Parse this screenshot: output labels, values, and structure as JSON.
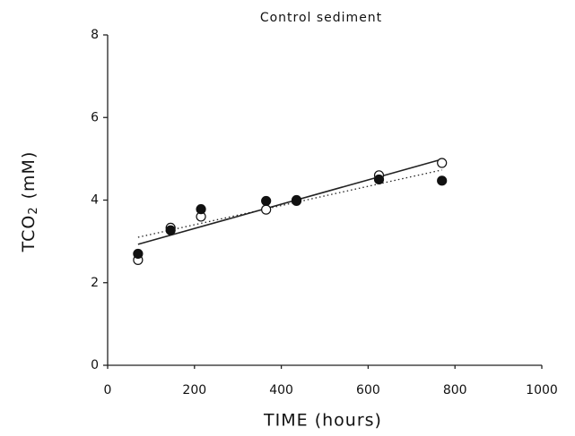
{
  "chart_data": {
    "type": "scatter",
    "title": "Control sediment",
    "x_label": "TIME (hours)",
    "y_label": {
      "text": "TCO",
      "subscript": "2",
      "suffix": "(mM)"
    },
    "xlim": [
      0,
      1000
    ],
    "xticks": [
      0,
      200,
      400,
      600,
      800,
      1000
    ],
    "ylim": [
      0,
      8
    ],
    "yticks": [
      0,
      2,
      4,
      6,
      8
    ],
    "series": [
      {
        "marker": "open",
        "color": "#111111",
        "x": [
          70,
          145,
          215,
          365,
          435,
          625,
          770
        ],
        "values": [
          2.55,
          3.33,
          3.6,
          3.77,
          4.0,
          4.6,
          4.9
        ]
      },
      {
        "marker": "filled",
        "color": "#111111",
        "x": [
          70,
          145,
          215,
          365,
          435,
          625,
          770
        ],
        "values": [
          2.7,
          3.27,
          3.78,
          3.98,
          3.98,
          4.5,
          4.47
        ]
      }
    ],
    "fits": [
      {
        "style": "solid",
        "color": "#222222",
        "x": [
          70,
          770
        ],
        "values": [
          2.93,
          4.99
        ]
      },
      {
        "style": "dotted",
        "color": "#222222",
        "x": [
          70,
          770
        ],
        "values": [
          3.1,
          4.73
        ]
      }
    ]
  }
}
